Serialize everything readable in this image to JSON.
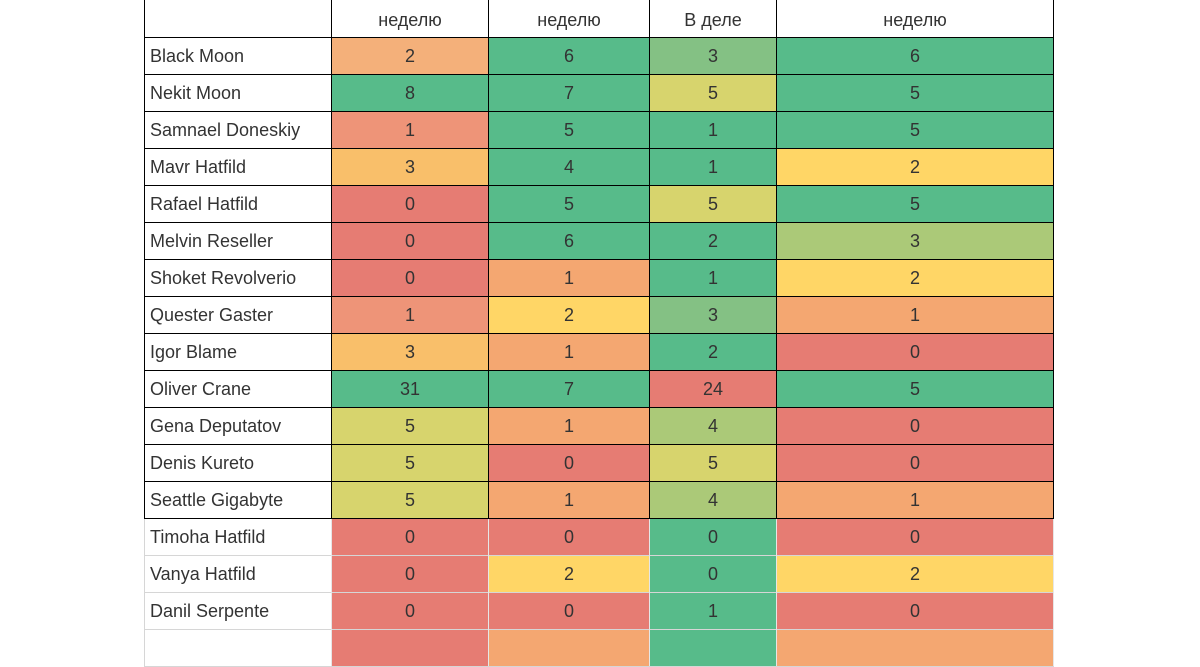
{
  "sheet": {
    "columns": [
      "",
      "неделю",
      "неделю",
      "В деле",
      "неделю"
    ],
    "rows": [
      {
        "name": "Black Moon",
        "values": [
          2,
          6,
          3,
          6
        ],
        "colors": [
          "#f4b07a",
          "#57bb8a",
          "#84c184",
          "#57bb8a"
        ]
      },
      {
        "name": "Nekit Moon",
        "values": [
          8,
          7,
          5,
          5
        ],
        "colors": [
          "#57bb8a",
          "#57bb8a",
          "#d7d46d",
          "#57bb8a"
        ]
      },
      {
        "name": "Samnael Doneskiy",
        "values": [
          1,
          5,
          1,
          5
        ],
        "colors": [
          "#ee9478",
          "#57bb8a",
          "#57bb8a",
          "#57bb8a"
        ]
      },
      {
        "name": "Mavr Hatfild",
        "values": [
          3,
          4,
          1,
          2
        ],
        "colors": [
          "#f9bf6a",
          "#57bb8a",
          "#57bb8a",
          "#ffd666"
        ]
      },
      {
        "name": "Rafael Hatfild",
        "values": [
          0,
          5,
          5,
          5
        ],
        "colors": [
          "#e67c73",
          "#57bb8a",
          "#d7d46d",
          "#57bb8a"
        ]
      },
      {
        "name": "Melvin Reseller",
        "values": [
          0,
          6,
          2,
          3
        ],
        "colors": [
          "#e67c73",
          "#57bb8a",
          "#57bb8a",
          "#abc978"
        ]
      },
      {
        "name": "Shoket Revolverio",
        "values": [
          0,
          1,
          1,
          2
        ],
        "colors": [
          "#e67c73",
          "#f4a771",
          "#57bb8a",
          "#ffd666"
        ]
      },
      {
        "name": "Quester Gaster",
        "values": [
          1,
          2,
          3,
          1
        ],
        "colors": [
          "#ee9478",
          "#ffd666",
          "#84c184",
          "#f4a771"
        ]
      },
      {
        "name": "Igor Blame",
        "values": [
          3,
          1,
          2,
          0
        ],
        "colors": [
          "#f9bf6a",
          "#f4a771",
          "#57bb8a",
          "#e67c73"
        ]
      },
      {
        "name": "Oliver Crane",
        "values": [
          31,
          7,
          24,
          5
        ],
        "colors": [
          "#57bb8a",
          "#57bb8a",
          "#e67c73",
          "#57bb8a"
        ]
      },
      {
        "name": "Gena Deputatov",
        "values": [
          5,
          1,
          4,
          0
        ],
        "colors": [
          "#d7d46d",
          "#f4a771",
          "#abc978",
          "#e67c73"
        ]
      },
      {
        "name": "Denis Kureto",
        "values": [
          5,
          0,
          5,
          0
        ],
        "colors": [
          "#d7d46d",
          "#e67c73",
          "#d7d46d",
          "#e67c73"
        ]
      },
      {
        "name": "Seattle Gigabyte",
        "values": [
          5,
          1,
          4,
          1
        ],
        "colors": [
          "#d7d46d",
          "#f4a771",
          "#abc978",
          "#f4a771"
        ]
      },
      {
        "name": "Timoha Hatfild",
        "values": [
          0,
          0,
          0,
          0
        ],
        "colors": [
          "#e67c73",
          "#e67c73",
          "#57bb8a",
          "#e67c73"
        ]
      },
      {
        "name": "Vanya Hatfild",
        "values": [
          0,
          2,
          0,
          2
        ],
        "colors": [
          "#e67c73",
          "#ffd666",
          "#57bb8a",
          "#ffd666"
        ]
      },
      {
        "name": "Danil Serpente",
        "values": [
          0,
          0,
          1,
          0
        ],
        "colors": [
          "#e67c73",
          "#e67c73",
          "#57bb8a",
          "#e67c73"
        ]
      }
    ],
    "partial_row_colors": [
      "#e67c73",
      "#f4a771",
      "#57bb8a",
      "#f4a771"
    ]
  }
}
